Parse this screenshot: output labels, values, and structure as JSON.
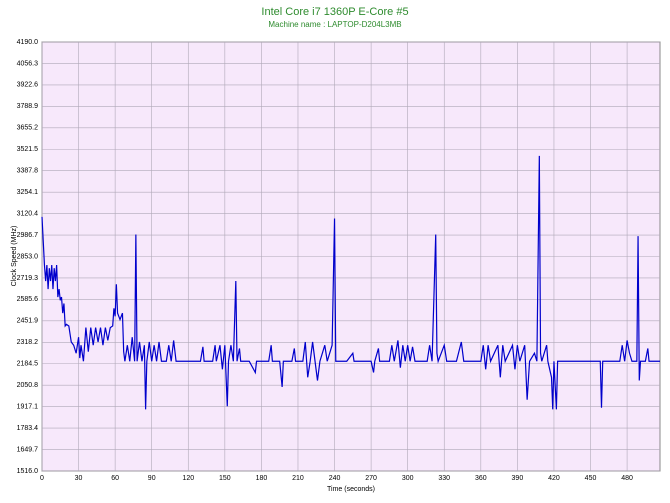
{
  "chart_data": {
    "type": "line",
    "title": "Intel Core i7 1360P E-Core #5",
    "subtitle": "Machine name : LAPTOP-D204L3MB",
    "y_label": "Clock Speed (MHz)",
    "x_label": "Time (seconds)",
    "x": [
      0,
      1,
      2,
      3,
      4,
      5,
      6,
      7,
      8,
      9,
      10,
      11,
      12,
      13,
      14,
      15,
      16,
      17,
      18,
      19,
      20,
      22,
      24,
      26,
      28,
      30,
      31,
      32,
      34,
      36,
      38,
      40,
      42,
      44,
      46,
      48,
      50,
      52,
      54,
      56,
      58,
      59,
      60,
      61,
      62,
      64,
      66,
      67,
      68,
      70,
      72,
      74,
      76,
      77,
      78,
      80,
      82,
      84,
      85,
      86,
      88,
      90,
      92,
      94,
      96,
      98,
      102,
      104,
      106,
      108,
      110,
      120,
      130,
      132,
      133,
      140,
      142,
      143,
      146,
      148,
      150,
      152,
      153,
      155,
      157,
      159,
      160,
      162,
      163,
      170,
      175,
      176,
      186,
      188,
      189,
      195,
      197,
      198,
      205,
      207,
      208,
      214,
      216,
      218,
      220,
      222,
      224,
      226,
      228,
      232,
      234,
      238,
      240,
      241,
      250,
      255,
      256,
      270,
      272,
      273,
      276,
      277,
      285,
      287,
      289,
      292,
      294,
      296,
      298,
      300,
      302,
      304,
      306,
      316,
      318,
      320,
      323,
      324,
      325,
      330,
      332,
      340,
      344,
      346,
      360,
      362,
      364,
      366,
      368,
      374,
      376,
      378,
      380,
      386,
      388,
      390,
      392,
      396,
      398,
      400,
      404,
      406,
      408,
      409,
      410,
      414,
      415,
      418,
      419,
      420,
      422,
      423,
      440,
      458,
      459,
      460,
      474,
      476,
      478,
      480,
      482,
      484,
      488,
      489,
      490,
      491,
      495,
      497,
      498,
      507
    ],
    "series": [
      {
        "name": "E-Core #5",
        "color": "#0000cc",
        "values": [
          3100,
          2950,
          2800,
          2700,
          2800,
          2650,
          2780,
          2700,
          2800,
          2650,
          2780,
          2700,
          2800,
          2600,
          2650,
          2580,
          2600,
          2500,
          2560,
          2420,
          2430,
          2420,
          2320,
          2300,
          2250,
          2350,
          2220,
          2300,
          2200,
          2410,
          2260,
          2410,
          2300,
          2410,
          2320,
          2410,
          2300,
          2410,
          2330,
          2410,
          2420,
          2530,
          2480,
          2680,
          2500,
          2460,
          2500,
          2260,
          2200,
          2300,
          2200,
          2350,
          2200,
          2990,
          2200,
          2320,
          2200,
          2300,
          1900,
          2200,
          2320,
          2200,
          2300,
          2200,
          2320,
          2200,
          2200,
          2300,
          2200,
          2330,
          2200,
          2200,
          2200,
          2290,
          2200,
          2200,
          2300,
          2200,
          2300,
          2150,
          2300,
          1920,
          2200,
          2300,
          2200,
          2700,
          2200,
          2280,
          2200,
          2200,
          2130,
          2200,
          2200,
          2300,
          2200,
          2200,
          2040,
          2200,
          2200,
          2280,
          2200,
          2200,
          2320,
          2100,
          2200,
          2320,
          2200,
          2080,
          2200,
          2300,
          2200,
          2300,
          3090,
          2200,
          2200,
          2250,
          2200,
          2200,
          2130,
          2200,
          2280,
          2200,
          2200,
          2300,
          2200,
          2330,
          2160,
          2300,
          2200,
          2300,
          2200,
          2290,
          2200,
          2200,
          2300,
          2200,
          2990,
          2250,
          2200,
          2300,
          2200,
          2200,
          2320,
          2200,
          2200,
          2300,
          2150,
          2300,
          2200,
          2300,
          2100,
          2300,
          2200,
          2300,
          2150,
          2300,
          2200,
          2300,
          1960,
          2200,
          2250,
          2200,
          3480,
          2250,
          2200,
          2300,
          2200,
          2100,
          1900,
          2200,
          1900,
          2200,
          2200,
          2200,
          1910,
          2200,
          2200,
          2300,
          2200,
          2330,
          2250,
          2200,
          2200,
          2980,
          2080,
          2200,
          2200,
          2280,
          2200,
          2200
        ]
      }
    ],
    "xlim": [
      0,
      507
    ],
    "xticks": [
      0,
      30,
      60,
      90,
      120,
      150,
      180,
      210,
      240,
      270,
      300,
      330,
      360,
      390,
      420,
      450,
      480
    ],
    "ylim": [
      1516,
      4190
    ],
    "yticks": [
      {
        "value": 1516,
        "label": "1516.0"
      },
      1649.7,
      1783.4,
      1917.1,
      2050.8,
      2184.5,
      2318.2,
      2451.9,
      2585.6,
      2719.3,
      {
        "value": 2853,
        "label": "2853.0"
      },
      2986.7,
      3120.4,
      3254.1,
      3387.8,
      3521.5,
      3655.2,
      3788.9,
      3922.6,
      4056.3,
      {
        "value": 4190,
        "label": "4190.0"
      }
    ],
    "grid": true
  }
}
